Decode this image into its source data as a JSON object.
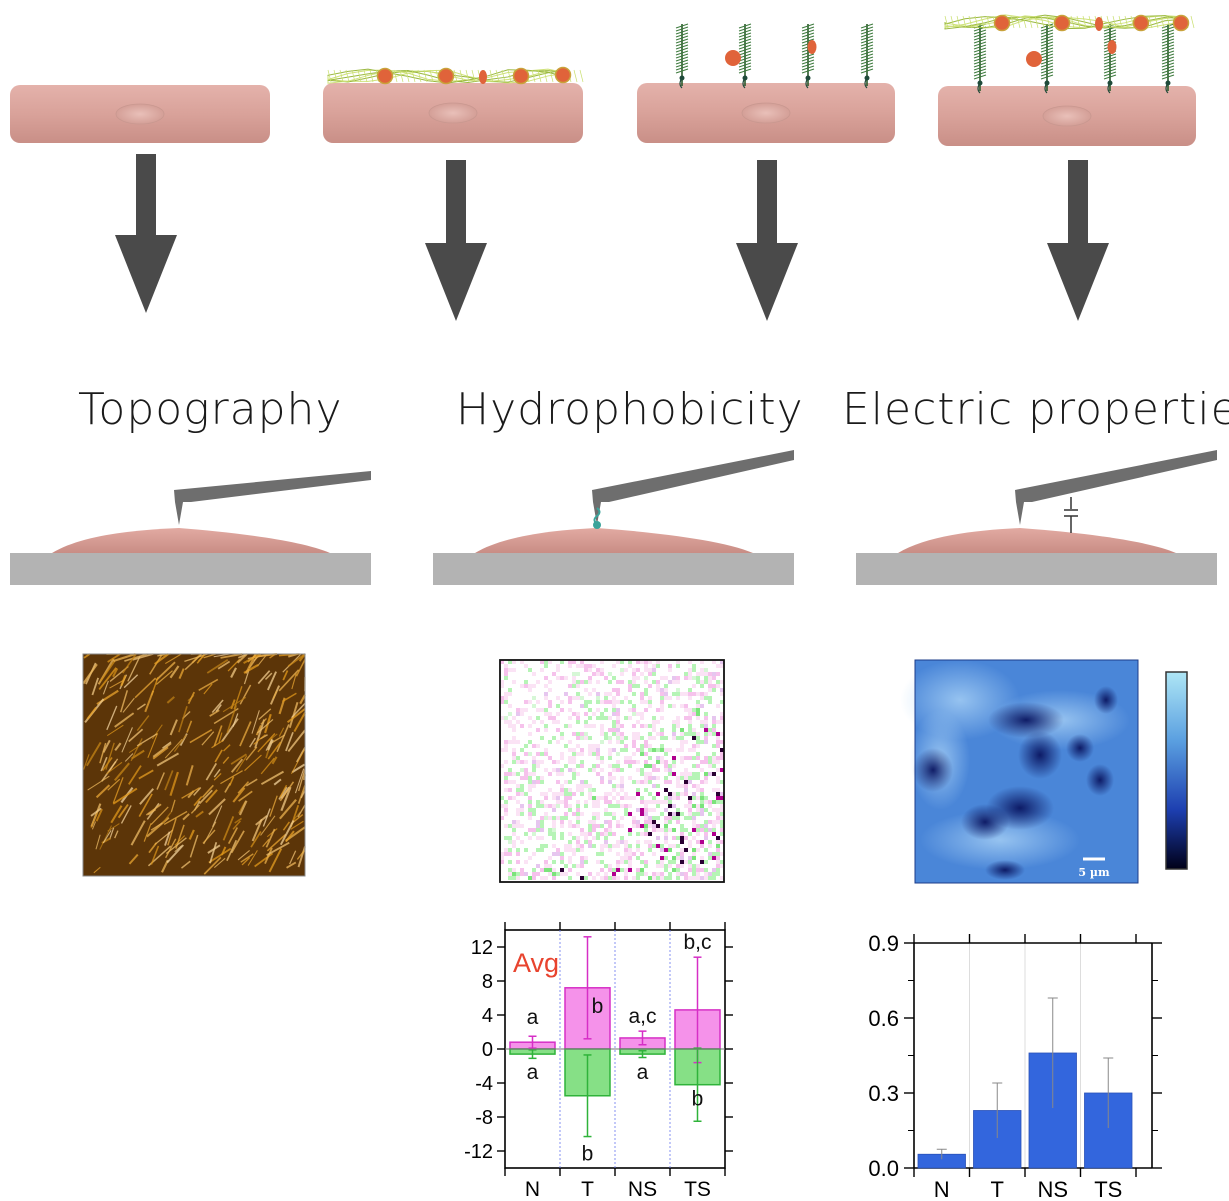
{
  "titles": {
    "topography": "Topography",
    "hydrophobicity": "Hydrophobicity",
    "electric": "Electric properties"
  },
  "colors": {
    "cell": "#d9a29a",
    "arrow": "#4a4a4a",
    "substrate": "#b3b3b3",
    "cantilever": "#6e6e6e",
    "hydrophobic_pos": "#ee44dd",
    "hydrophobic_neg": "#44dd55",
    "electric_bar": "#3366dd",
    "avg_label": "#e8432e"
  },
  "electric_scalebar": "5 µm",
  "chart_data": [
    {
      "type": "bar",
      "categories": [
        "N",
        "T",
        "NS",
        "TS"
      ],
      "annotation": "Avg",
      "ylim": [
        -14,
        14
      ],
      "yticks": [
        -12,
        -8,
        -4,
        0,
        4,
        8,
        12
      ],
      "series": [
        {
          "values": [
            0.8,
            7.2,
            1.3,
            4.6
          ],
          "errors": [
            0.7,
            6.0,
            0.8,
            6.2
          ],
          "letters": [
            "a",
            "b",
            "a,c",
            "b,c"
          ]
        },
        {
          "values": [
            -0.6,
            -5.5,
            -0.6,
            -4.2
          ],
          "errors": [
            0.5,
            4.8,
            0.4,
            4.3
          ],
          "letters": [
            "a",
            "b",
            "a",
            "b"
          ]
        }
      ]
    },
    {
      "type": "bar",
      "categories": [
        "N",
        "T",
        "NS",
        "TS"
      ],
      "ylim": [
        0.0,
        0.9
      ],
      "yticks": [
        0.0,
        0.3,
        0.6,
        0.9
      ],
      "values": [
        0.055,
        0.23,
        0.46,
        0.3
      ],
      "errors": [
        0.02,
        0.11,
        0.22,
        0.14
      ]
    }
  ]
}
